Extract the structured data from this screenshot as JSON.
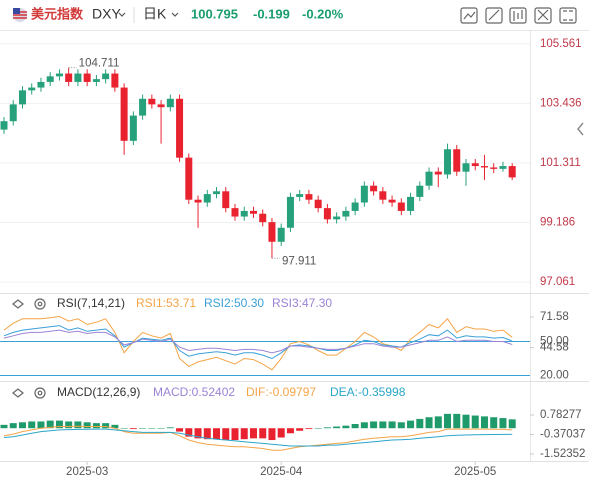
{
  "header": {
    "name": "美元指数",
    "symbol": "DXY",
    "period": "日K",
    "price": "100.795",
    "change": "-0.199",
    "change_pct": "-0.20%"
  },
  "chart_data": [
    {
      "type": "candlestick",
      "up_color": "#26a17b",
      "down_color": "#e8232f",
      "open": [
        102.5,
        102.8,
        103.4,
        103.9,
        104.0,
        104.2,
        104.4,
        104.5,
        104.2,
        104.5,
        104.2,
        104.3,
        104.5,
        104.0,
        102.1,
        103.0,
        103.6,
        103.4,
        103.3,
        103.6,
        101.5,
        100.0,
        99.9,
        100.2,
        100.3,
        99.7,
        99.4,
        99.6,
        99.5,
        99.2,
        98.5,
        99.0,
        100.1,
        100.2,
        100.0,
        99.7,
        99.3,
        99.4,
        99.6,
        99.9,
        100.5,
        100.3,
        100.0,
        99.9,
        99.6,
        100.1,
        100.5,
        101.0,
        100.9,
        101.8,
        101.0,
        101.3,
        101.2,
        101.15,
        101.1,
        101.2
      ],
      "high": [
        102.95,
        103.55,
        104.05,
        104.15,
        104.35,
        104.55,
        104.65,
        104.711,
        104.65,
        104.65,
        104.45,
        104.65,
        104.65,
        104.15,
        103.15,
        103.75,
        103.75,
        103.55,
        103.75,
        103.75,
        101.65,
        100.15,
        100.35,
        100.45,
        100.45,
        99.85,
        99.75,
        99.75,
        99.65,
        99.35,
        99.15,
        100.25,
        100.35,
        100.35,
        100.15,
        99.85,
        99.55,
        99.75,
        100.05,
        100.65,
        100.65,
        100.45,
        100.15,
        100.05,
        100.25,
        100.65,
        101.15,
        101.15,
        102.0,
        101.95,
        101.45,
        101.45,
        101.6,
        101.3,
        101.35,
        101.3
      ],
      "low": [
        102.35,
        102.65,
        103.25,
        103.75,
        103.85,
        104.05,
        104.25,
        104.05,
        104.05,
        104.05,
        104.05,
        104.15,
        103.85,
        101.6,
        101.95,
        102.85,
        103.25,
        102.0,
        103.15,
        101.35,
        99.85,
        99.0,
        99.75,
        100.05,
        99.55,
        99.25,
        99.25,
        99.35,
        99.05,
        97.911,
        98.35,
        98.85,
        99.95,
        99.85,
        99.55,
        99.15,
        99.15,
        99.25,
        99.45,
        99.75,
        100.15,
        99.85,
        99.75,
        99.45,
        99.45,
        99.95,
        100.35,
        100.45,
        100.75,
        100.85,
        100.5,
        101.05,
        100.7,
        100.95,
        101.0,
        100.7
      ],
      "close": [
        102.8,
        103.4,
        103.9,
        104.0,
        104.2,
        104.4,
        104.5,
        104.2,
        104.5,
        104.2,
        104.3,
        104.5,
        104.0,
        102.1,
        103.0,
        103.6,
        103.4,
        103.3,
        103.6,
        101.5,
        100.0,
        99.9,
        100.2,
        100.3,
        99.7,
        99.4,
        99.6,
        99.5,
        99.2,
        98.5,
        99.0,
        100.1,
        100.2,
        100.0,
        99.7,
        99.3,
        99.4,
        99.6,
        99.9,
        100.5,
        100.3,
        100.0,
        99.9,
        99.6,
        100.1,
        100.5,
        101.0,
        100.9,
        101.8,
        101.0,
        101.3,
        101.2,
        101.15,
        101.1,
        101.2,
        100.795
      ],
      "annotations": [
        {
          "index": 7,
          "field": "high",
          "label": "104.711"
        },
        {
          "index": 29,
          "field": "low",
          "label": "97.911"
        }
      ],
      "ylim": [
        96.78,
        105.91
      ],
      "yticks": [
        97.061,
        99.186,
        101.311,
        103.436,
        105.561
      ],
      "grid": true,
      "tick_color": "#c0394a"
    },
    {
      "type": "line",
      "title": "RSI(7,14,21)",
      "ylim": [
        16,
        76
      ],
      "yticks": [
        71.58,
        {
          "value": 50,
          "label": "50.00"
        },
        44.58,
        {
          "value": 20,
          "label": "20.00"
        }
      ],
      "level_color": "#3aa0d8",
      "series": [
        {
          "name": "RSI1:53.71",
          "color": "#f5a447",
          "values": [
            60,
            66,
            70,
            70,
            70,
            71,
            72,
            68,
            70,
            65,
            67,
            70,
            58,
            40,
            50,
            58,
            55,
            53,
            57,
            35,
            28,
            32,
            34,
            36,
            33,
            30,
            35,
            34,
            30,
            25,
            35,
            48,
            50,
            47,
            42,
            38,
            38,
            44,
            50,
            58,
            54,
            48,
            46,
            42,
            52,
            58,
            65,
            62,
            70,
            58,
            63,
            61,
            61,
            59,
            60,
            53.71
          ]
        },
        {
          "name": "RSI2:50.30",
          "color": "#3aa0d8",
          "values": [
            55,
            58,
            60,
            61,
            62,
            63,
            64,
            60,
            62,
            59,
            60,
            61,
            55,
            45,
            49,
            53,
            52,
            51,
            53,
            42,
            37,
            39,
            40,
            41,
            40,
            38,
            40,
            40,
            38,
            35,
            40,
            46,
            47,
            46,
            44,
            42,
            42,
            44,
            47,
            51,
            50,
            47,
            46,
            45,
            49,
            52,
            56,
            55,
            60,
            53,
            55,
            54,
            54,
            53,
            53.5,
            50.3
          ]
        },
        {
          "name": "RSI3:47.30",
          "color": "#9b83d6",
          "values": [
            53,
            55,
            57,
            58,
            58,
            59,
            60,
            58,
            59,
            57,
            58,
            58,
            54,
            47,
            49,
            52,
            51,
            50,
            52,
            45,
            42,
            43,
            44,
            44,
            43,
            42,
            43,
            43,
            42,
            40,
            42,
            46,
            46,
            45,
            44,
            43,
            43,
            44,
            46,
            48,
            48,
            46,
            45,
            45,
            47,
            49,
            51,
            51,
            54,
            50,
            51,
            51,
            51,
            50,
            50,
            47.3
          ]
        }
      ]
    },
    {
      "type": "macd",
      "title": "MACD(12,26,9)",
      "ylim": [
        -2.0,
        1.67
      ],
      "yticks": [
        0.78277,
        -0.37037,
        -1.52352
      ],
      "up_color": "#1f9a6a",
      "down_color": "#e8232f",
      "series": [
        {
          "name": "MACD:0.52402",
          "color": "#9b83d6",
          "kind": "bar",
          "values": [
            0.2,
            0.3,
            0.35,
            0.4,
            0.4,
            0.45,
            0.45,
            0.4,
            0.4,
            0.35,
            0.3,
            0.3,
            0.2,
            0.0,
            -0.05,
            0.0,
            0.0,
            0.0,
            0.05,
            -0.2,
            -0.5,
            -0.6,
            -0.65,
            -0.65,
            -0.7,
            -0.7,
            -0.65,
            -0.6,
            -0.6,
            -0.7,
            -0.55,
            -0.3,
            -0.15,
            -0.05,
            0.0,
            0.05,
            0.1,
            0.15,
            0.25,
            0.35,
            0.4,
            0.4,
            0.4,
            0.35,
            0.45,
            0.55,
            0.65,
            0.7,
            0.85,
            0.85,
            0.8,
            0.75,
            0.7,
            0.65,
            0.6,
            0.52402
          ]
        },
        {
          "name": "DIF:-0.09797",
          "color": "#f5a447",
          "kind": "line",
          "values": [
            -0.45,
            -0.35,
            -0.2,
            -0.1,
            0.0,
            0.05,
            0.1,
            0.1,
            0.12,
            0.1,
            0.1,
            0.1,
            0.0,
            -0.2,
            -0.3,
            -0.3,
            -0.3,
            -0.3,
            -0.25,
            -0.45,
            -0.7,
            -0.85,
            -0.95,
            -1.0,
            -1.05,
            -1.1,
            -1.1,
            -1.15,
            -1.2,
            -1.3,
            -1.3,
            -1.2,
            -1.1,
            -1.05,
            -1.0,
            -0.95,
            -0.9,
            -0.85,
            -0.75,
            -0.65,
            -0.6,
            -0.55,
            -0.5,
            -0.5,
            -0.45,
            -0.35,
            -0.25,
            -0.2,
            -0.05,
            -0.05,
            -0.05,
            -0.05,
            -0.05,
            -0.06,
            -0.07,
            -0.09797
          ]
        },
        {
          "name": "DEA:-0.35998",
          "color": "#2aa6c9",
          "kind": "line",
          "values": [
            -0.55,
            -0.5,
            -0.4,
            -0.3,
            -0.2,
            -0.15,
            -0.1,
            -0.08,
            -0.07,
            -0.06,
            -0.05,
            -0.05,
            -0.1,
            -0.15,
            -0.2,
            -0.25,
            -0.25,
            -0.25,
            -0.25,
            -0.3,
            -0.4,
            -0.5,
            -0.6,
            -0.65,
            -0.7,
            -0.75,
            -0.8,
            -0.85,
            -0.9,
            -0.95,
            -1.0,
            -1.05,
            -1.05,
            -1.05,
            -1.05,
            -1.0,
            -1.0,
            -0.95,
            -0.9,
            -0.85,
            -0.8,
            -0.75,
            -0.7,
            -0.68,
            -0.65,
            -0.6,
            -0.55,
            -0.5,
            -0.45,
            -0.42,
            -0.4,
            -0.39,
            -0.38,
            -0.37,
            -0.365,
            -0.35998
          ]
        }
      ],
      "xticks": [
        {
          "value": 9,
          "label": "2025-03"
        },
        {
          "value": 30,
          "label": "2025-04"
        },
        {
          "value": 51,
          "label": "2025-05"
        }
      ]
    }
  ]
}
